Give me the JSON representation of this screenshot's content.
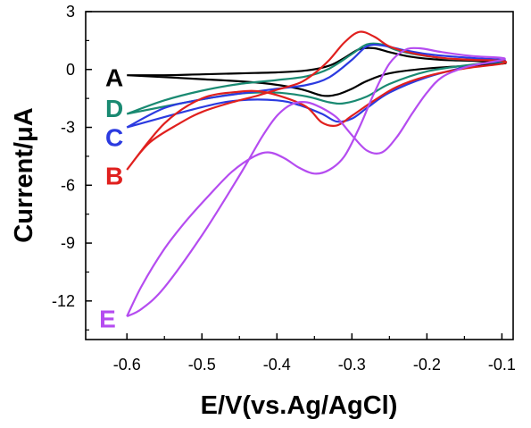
{
  "chart_data": {
    "type": "line",
    "xlabel": "E/V(vs.Ag/AgCl)",
    "ylabel": "Current/μA",
    "xlim": [
      -0.655,
      -0.085
    ],
    "ylim": [
      -14,
      3
    ],
    "x_ticks": [
      {
        "value": -0.6,
        "label": "-0.6"
      },
      {
        "value": -0.5,
        "label": "-0.5"
      },
      {
        "value": -0.4,
        "label": "-0.4"
      },
      {
        "value": -0.3,
        "label": "-0.3"
      },
      {
        "value": -0.2,
        "label": "-0.2"
      },
      {
        "value": -0.1,
        "label": "-0.1"
      }
    ],
    "y_ticks": [
      {
        "value": 3,
        "label": "3"
      },
      {
        "value": 0,
        "label": "0"
      },
      {
        "value": -3,
        "label": "-3"
      },
      {
        "value": -6,
        "label": "-6"
      },
      {
        "value": -9,
        "label": "-9"
      },
      {
        "value": -12,
        "label": "-12"
      }
    ],
    "grid": false,
    "series": [
      {
        "name": "A",
        "color": "#000000",
        "label_at": [
          -0.6,
          -0.4
        ],
        "label_anchor": "end",
        "x": [
          -0.6,
          -0.55,
          -0.5,
          -0.45,
          -0.4,
          -0.36,
          -0.33,
          -0.31,
          -0.29,
          -0.27,
          -0.25,
          -0.22,
          -0.18,
          -0.14,
          -0.1,
          -0.1,
          -0.14,
          -0.2,
          -0.25,
          -0.28,
          -0.3,
          -0.32,
          -0.34,
          -0.37,
          -0.42,
          -0.5,
          -0.6
        ],
        "y": [
          -0.3,
          -0.3,
          -0.25,
          -0.2,
          -0.15,
          -0.05,
          0.2,
          0.6,
          1.05,
          1.1,
          0.9,
          0.65,
          0.5,
          0.45,
          0.35,
          0.3,
          0.2,
          0.05,
          -0.2,
          -0.6,
          -1.0,
          -1.3,
          -1.35,
          -1.0,
          -0.7,
          -0.5,
          -0.3
        ]
      },
      {
        "name": "D",
        "color": "#1a8a72",
        "label_at": [
          -0.6,
          -2.0
        ],
        "label_anchor": "end",
        "x": [
          -0.6,
          -0.55,
          -0.5,
          -0.45,
          -0.4,
          -0.36,
          -0.33,
          -0.3,
          -0.28,
          -0.26,
          -0.24,
          -0.21,
          -0.17,
          -0.13,
          -0.1,
          -0.1,
          -0.14,
          -0.2,
          -0.25,
          -0.28,
          -0.31,
          -0.33,
          -0.36,
          -0.4,
          -0.45,
          -0.5,
          -0.6
        ],
        "y": [
          -2.3,
          -1.6,
          -1.1,
          -0.75,
          -0.55,
          -0.35,
          0.05,
          0.8,
          1.3,
          1.3,
          1.0,
          0.75,
          0.55,
          0.5,
          0.45,
          0.4,
          0.25,
          -0.1,
          -0.75,
          -1.4,
          -1.75,
          -1.7,
          -1.4,
          -1.2,
          -1.25,
          -1.55,
          -2.3
        ]
      },
      {
        "name": "C",
        "color": "#2b3ae0",
        "label_at": [
          -0.6,
          -3.5
        ],
        "label_anchor": "end",
        "x": [
          -0.6,
          -0.55,
          -0.5,
          -0.45,
          -0.4,
          -0.36,
          -0.33,
          -0.3,
          -0.28,
          -0.26,
          -0.23,
          -0.2,
          -0.16,
          -0.12,
          -0.1,
          -0.1,
          -0.14,
          -0.2,
          -0.25,
          -0.28,
          -0.3,
          -0.32,
          -0.34,
          -0.37,
          -0.4,
          -0.45,
          -0.5,
          -0.6
        ],
        "y": [
          -3.0,
          -2.0,
          -1.55,
          -1.25,
          -1.0,
          -0.8,
          -0.4,
          0.5,
          1.2,
          1.25,
          1.0,
          0.8,
          0.65,
          0.55,
          0.5,
          0.45,
          0.2,
          -0.4,
          -1.2,
          -2.0,
          -2.55,
          -2.7,
          -2.3,
          -1.85,
          -1.6,
          -1.6,
          -1.95,
          -3.0
        ]
      },
      {
        "name": "B",
        "color": "#e0201e",
        "label_at": [
          -0.6,
          -5.5
        ],
        "label_anchor": "end",
        "x": [
          -0.6,
          -0.57,
          -0.53,
          -0.5,
          -0.46,
          -0.43,
          -0.4,
          -0.37,
          -0.35,
          -0.33,
          -0.31,
          -0.29,
          -0.27,
          -0.25,
          -0.22,
          -0.18,
          -0.14,
          -0.1,
          -0.1,
          -0.15,
          -0.2,
          -0.24,
          -0.27,
          -0.3,
          -0.32,
          -0.34,
          -0.36,
          -0.39,
          -0.42,
          -0.45,
          -0.5,
          -0.55,
          -0.6
        ],
        "y": [
          -5.2,
          -3.8,
          -2.8,
          -2.2,
          -1.7,
          -1.4,
          -1.05,
          -0.7,
          -0.2,
          0.5,
          1.4,
          1.95,
          1.7,
          1.2,
          0.85,
          0.6,
          0.5,
          0.45,
          0.3,
          0.05,
          -0.35,
          -0.9,
          -1.6,
          -2.4,
          -2.9,
          -2.75,
          -1.95,
          -1.45,
          -1.15,
          -1.15,
          -1.5,
          -2.8,
          -5.2
        ]
      },
      {
        "name": "E",
        "color": "#b54cf0",
        "label_at": [
          -0.61,
          -12.9
        ],
        "label_anchor": "end",
        "x": [
          -0.6,
          -0.58,
          -0.55,
          -0.52,
          -0.49,
          -0.46,
          -0.43,
          -0.41,
          -0.39,
          -0.37,
          -0.35,
          -0.33,
          -0.31,
          -0.29,
          -0.27,
          -0.25,
          -0.23,
          -0.21,
          -0.18,
          -0.14,
          -0.1,
          -0.1,
          -0.12,
          -0.15,
          -0.18,
          -0.2,
          -0.22,
          -0.24,
          -0.26,
          -0.28,
          -0.3,
          -0.32,
          -0.34,
          -0.36,
          -0.38,
          -0.4,
          -0.42,
          -0.45,
          -0.5,
          -0.55,
          -0.58,
          -0.6
        ],
        "y": [
          -12.8,
          -11.2,
          -9.3,
          -7.8,
          -6.5,
          -5.3,
          -4.5,
          -4.3,
          -4.6,
          -5.1,
          -5.4,
          -5.2,
          -4.5,
          -3.0,
          -1.2,
          0.3,
          1.0,
          1.1,
          0.9,
          0.7,
          0.6,
          0.5,
          0.35,
          0.1,
          -0.4,
          -1.2,
          -2.3,
          -3.5,
          -4.3,
          -4.2,
          -3.4,
          -2.5,
          -2.0,
          -1.7,
          -1.8,
          -2.4,
          -3.5,
          -5.5,
          -8.6,
          -11.3,
          -12.4,
          -12.8
        ]
      }
    ]
  }
}
